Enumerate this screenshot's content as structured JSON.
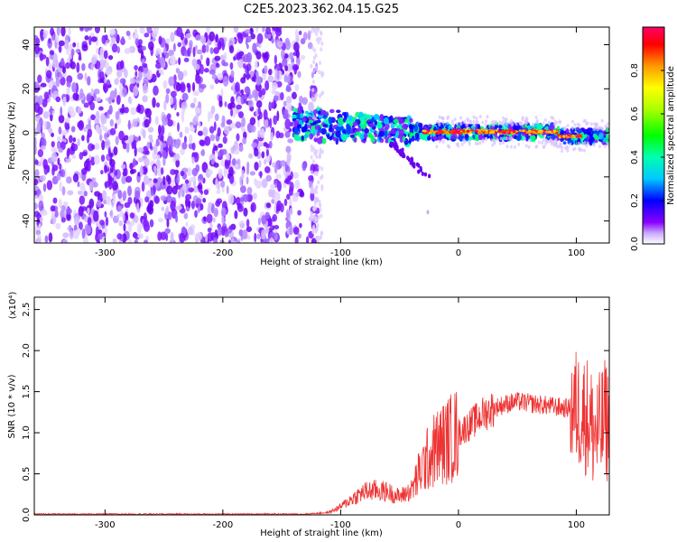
{
  "title": "C2E5.2023.362.04.15.G25",
  "chart_data": [
    {
      "type": "heatmap",
      "xlabel": "Height of straight line (km)",
      "ylabel": "Frequency (Hz)",
      "xlim": [
        -360,
        128
      ],
      "ylim": [
        -50,
        48
      ],
      "xticks": [
        -300,
        -200,
        -100,
        0,
        100
      ],
      "yticks": [
        -40,
        -20,
        0,
        20,
        40
      ],
      "colorbar": {
        "label": "Normalized spectral amplitude",
        "range": [
          0.0,
          1.0
        ],
        "ticks": [
          "0.0",
          "0.2",
          "0.4",
          "0.6",
          "0.8"
        ]
      },
      "features": {
        "noise_region_x": [
          -360,
          -120
        ],
        "signal_band_center_hz": 0,
        "signal_start_x": -140,
        "strong_band_x": [
          -30,
          128
        ],
        "tail_end": [
          -30,
          -20
        ]
      },
      "grid": false
    },
    {
      "type": "line",
      "xlabel": "Height of straight line (km)",
      "ylabel": "SNR (10 * v/v)",
      "y_multiplier": "(x10⁴)",
      "xlim": [
        -360,
        128
      ],
      "ylim": [
        0.0,
        2.65
      ],
      "xticks": [
        -300,
        -200,
        -100,
        0,
        100
      ],
      "yticks": [
        "0.0",
        "0.5",
        "1.0",
        "1.5",
        "2.0",
        "2.5"
      ],
      "series": [
        {
          "color": "#ee3333",
          "x": [
            -360,
            -300,
            -200,
            -130,
            -110,
            -100,
            -90,
            -80,
            -70,
            -60,
            -50,
            -40,
            -30,
            -20,
            -10,
            0,
            10,
            20,
            30,
            40,
            50,
            60,
            70,
            80,
            90,
            95,
            100,
            105,
            110,
            115,
            120,
            125,
            128
          ],
          "y": [
            0.01,
            0.01,
            0.01,
            0.01,
            0.03,
            0.1,
            0.2,
            0.28,
            0.3,
            0.28,
            0.22,
            0.3,
            0.6,
            0.8,
            0.9,
            1.0,
            1.1,
            1.22,
            1.3,
            1.35,
            1.38,
            1.36,
            1.34,
            1.32,
            1.3,
            1.3,
            1.3,
            1.25,
            1.2,
            1.0,
            1.0,
            1.2,
            1.0
          ]
        }
      ],
      "grid": false
    }
  ]
}
